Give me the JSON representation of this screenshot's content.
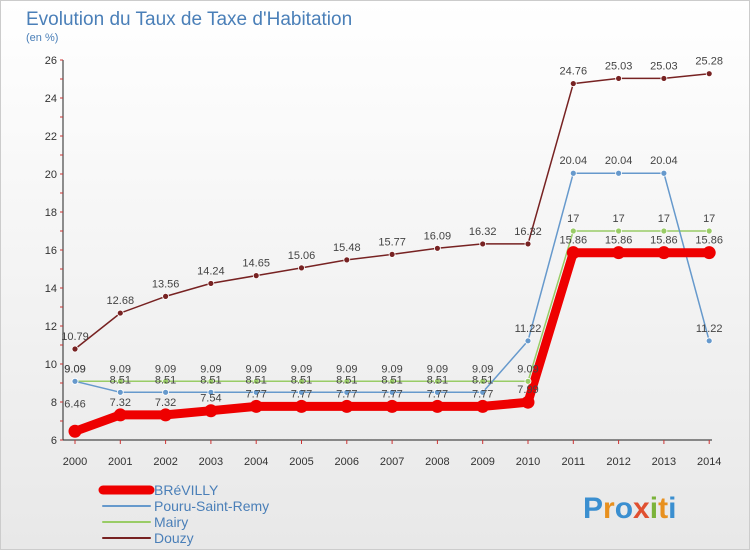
{
  "chart_data": {
    "type": "line",
    "title": "Evolution du Taux de Taxe d'Habitation",
    "subtitle": "(en %)",
    "xlabel": "",
    "ylabel": "",
    "x": [
      "2000",
      "2001",
      "2002",
      "2003",
      "2004",
      "2005",
      "2006",
      "2007",
      "2008",
      "2009",
      "2010",
      "2011",
      "2012",
      "2013",
      "2014"
    ],
    "ylim": [
      6,
      26
    ],
    "yticks": [
      "6",
      "8",
      "10",
      "12",
      "14",
      "16",
      "18",
      "20",
      "22",
      "24",
      "26"
    ],
    "grid": false,
    "legend_position": "bottom-left",
    "series": [
      {
        "name": "BRéVILLY",
        "color": "#ee0000",
        "values": [
          6.46,
          7.32,
          7.32,
          7.54,
          7.77,
          7.77,
          7.77,
          7.77,
          7.77,
          7.77,
          7.99,
          15.86,
          15.86,
          15.86,
          15.86
        ],
        "labels": [
          "6.46",
          "7.32",
          "7.32",
          "7.54",
          "7.77",
          "7.77",
          "7.77",
          "7.77",
          "7.77",
          "7.77",
          "7.99",
          "15.86",
          "15.86",
          "15.86",
          "15.86"
        ]
      },
      {
        "name": "Pouru-Saint-Remy",
        "color": "#6699cc",
        "values": [
          9.09,
          8.51,
          8.51,
          8.51,
          8.51,
          8.51,
          8.51,
          8.51,
          8.51,
          8.51,
          11.22,
          20.04,
          20.04,
          20.04,
          11.22
        ],
        "labels": [
          "9.09",
          "8.51",
          "8.51",
          "8.51",
          "8.51",
          "8.51",
          "8.51",
          "8.51",
          "8.51",
          "8.51",
          "11.22",
          "20.04",
          "20.04",
          "20.04",
          "11.22"
        ]
      },
      {
        "name": "Mairy",
        "color": "#99cc66",
        "values": [
          9.09,
          9.09,
          9.09,
          9.09,
          9.09,
          9.09,
          9.09,
          9.09,
          9.09,
          9.09,
          9.09,
          17,
          17,
          17,
          17
        ],
        "labels": [
          "9.09",
          "9.09",
          "9.09",
          "9.09",
          "9.09",
          "9.09",
          "9.09",
          "9.09",
          "9.09",
          "9.09",
          "9.09",
          "17",
          "17",
          "17",
          "17"
        ]
      },
      {
        "name": "Douzy",
        "color": "#772222",
        "values": [
          10.79,
          12.68,
          13.56,
          14.24,
          14.65,
          15.06,
          15.48,
          15.77,
          16.09,
          16.32,
          16.32,
          24.76,
          25.03,
          25.03,
          25.28
        ],
        "labels": [
          "10.79",
          "12.68",
          "13.56",
          "14.24",
          "14.65",
          "15.06",
          "15.48",
          "15.77",
          "16.09",
          "16.32",
          "16.32",
          "24.76",
          "25.03",
          "25.03",
          "25.28"
        ]
      }
    ]
  },
  "logo": {
    "text": "Proxiti"
  }
}
